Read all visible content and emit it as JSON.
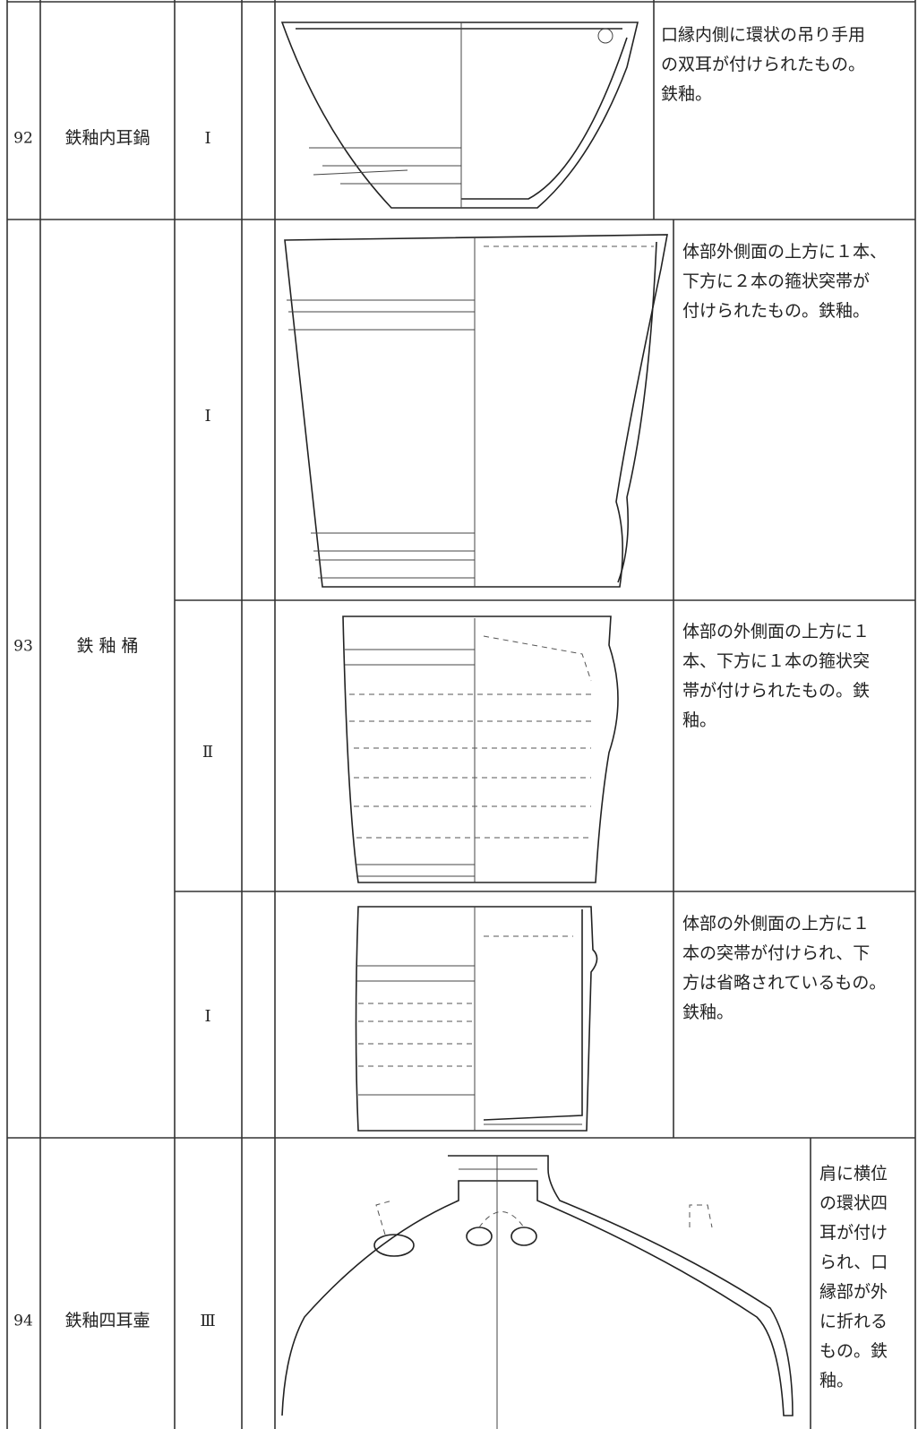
{
  "rows": [
    {
      "number": "92",
      "name": "鉄釉内耳鍋",
      "items": [
        {
          "type": "Ⅰ",
          "description": [
            "口縁内側に環状の吊り手用",
            "の双耳が付けられたもの。",
            "鉄釉。"
          ]
        }
      ]
    },
    {
      "number": "93",
      "name": "鉄 釉 桶",
      "items": [
        {
          "type": "Ⅰ",
          "description": [
            "体部外側面の上方に１本、",
            "下方に２本の箍状突帯が",
            "付けられたもの。鉄釉。"
          ]
        },
        {
          "type": "Ⅱ",
          "description": [
            "体部の外側面の上方に１",
            "本、下方に１本の箍状突",
            "帯が付けられたもの。鉄",
            "釉。"
          ]
        },
        {
          "type": "Ⅰ",
          "description": [
            "体部の外側面の上方に１",
            "本の突帯が付けられ、下",
            "方は省略されているもの。",
            "鉄釉。"
          ]
        }
      ]
    },
    {
      "number": "94",
      "name": "鉄釉四耳壷",
      "items": [
        {
          "type": "Ⅲ",
          "description": [
            "肩に横位",
            "の環状四",
            "耳が付け",
            "られ、口",
            "縁部が外",
            "に折れる",
            "もの。鉄",
            "釉。"
          ]
        }
      ]
    }
  ]
}
